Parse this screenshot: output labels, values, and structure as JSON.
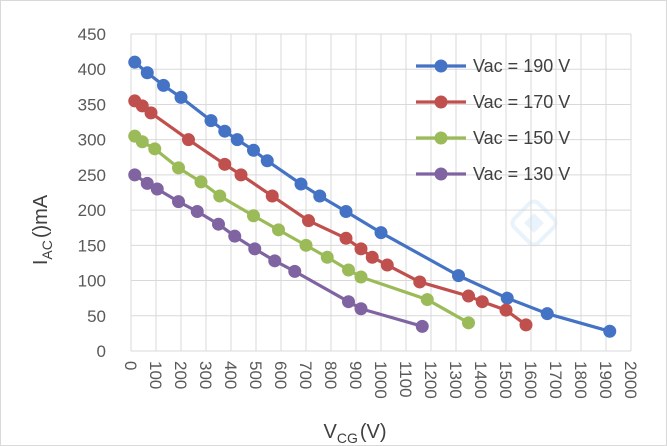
{
  "chart_data": {
    "type": "line",
    "title": "",
    "xlabel_main": "V",
    "xlabel_sub": "CG",
    "xlabel_tail": "(V)",
    "ylabel_main": "I",
    "ylabel_sub": "AC",
    "ylabel_tail": "()mA",
    "xlim": [
      0,
      2000
    ],
    "ylim": [
      0,
      450
    ],
    "xticks": [
      0,
      100,
      200,
      300,
      400,
      500,
      600,
      700,
      800,
      900,
      1000,
      1100,
      1200,
      1300,
      1400,
      1500,
      1600,
      1700,
      1800,
      1900,
      2000
    ],
    "yticks": [
      0,
      50,
      100,
      150,
      200,
      250,
      300,
      350,
      400,
      450
    ],
    "grid": true,
    "legend_position": "top-right",
    "series": [
      {
        "name": "Vac = 190 V",
        "color": "#4472C4",
        "x": [
          15,
          65,
          130,
          200,
          320,
          375,
          425,
          490,
          545,
          680,
          755,
          860,
          1000,
          1310,
          1505,
          1665,
          1915
        ],
        "y": [
          410,
          395,
          377,
          360,
          327,
          312,
          300,
          285,
          270,
          237,
          220,
          198,
          168,
          107,
          75,
          53,
          28
        ]
      },
      {
        "name": "Vac = 170 V",
        "color": "#C0504D",
        "x": [
          15,
          45,
          80,
          230,
          375,
          440,
          565,
          710,
          860,
          920,
          965,
          1025,
          1155,
          1350,
          1405,
          1500,
          1580
        ],
        "y": [
          355,
          348,
          338,
          300,
          265,
          250,
          220,
          185,
          160,
          145,
          133,
          122,
          98,
          78,
          70,
          58,
          37
        ]
      },
      {
        "name": "Vac = 150 V",
        "color": "#9BBB59",
        "x": [
          15,
          45,
          95,
          190,
          280,
          355,
          490,
          590,
          700,
          785,
          870,
          920,
          1185,
          1350
        ],
        "y": [
          305,
          297,
          287,
          260,
          240,
          220,
          192,
          172,
          150,
          133,
          115,
          105,
          73,
          40
        ]
      },
      {
        "name": "Vac = 130 V",
        "color": "#8064A2",
        "x": [
          15,
          65,
          105,
          190,
          265,
          350,
          415,
          495,
          575,
          655,
          870,
          920,
          1165
        ],
        "y": [
          250,
          238,
          230,
          212,
          198,
          180,
          163,
          145,
          128,
          113,
          70,
          60,
          35
        ]
      }
    ]
  }
}
